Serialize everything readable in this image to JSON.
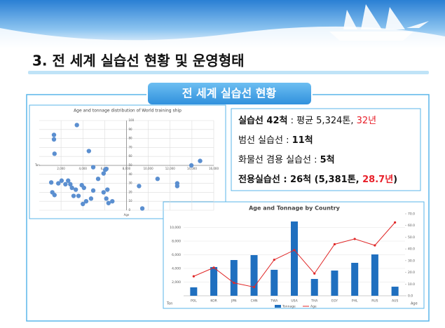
{
  "header": {
    "title": "3. 전 세계 실습선 현황 및 운영형태"
  },
  "section_title": "전 세계 실습선 현황",
  "summary": [
    [
      {
        "text": "실습선 42척",
        "bold": true
      },
      {
        "text": " : 평균 5,324톤, "
      },
      {
        "text": "32년",
        "color": "#e8202a"
      }
    ],
    [
      {
        "text": "범선 실습선 : "
      },
      {
        "text": "11척",
        "bold": true
      }
    ],
    [
      {
        "text": "화물선 겸용 실습선 : "
      },
      {
        "text": "5척",
        "bold": true
      }
    ],
    [
      {
        "text": "전용실습선 : 26척 (5,381톤, ",
        "bold": true
      },
      {
        "text": "28.7년",
        "color": "#e8202a",
        "bold": true
      },
      {
        "text": ")",
        "bold": true
      }
    ]
  ],
  "chart_data": [
    {
      "type": "scatter",
      "title": "Age and tonnage distribution of World training ship",
      "xlabel": "Age",
      "ylabel": "Ton",
      "color": "#5b8fd0",
      "grid": true,
      "axes_cross": {
        "x": 8000,
        "y": 50
      },
      "xlim": [
        0,
        16000
      ],
      "ylim": [
        0,
        100
      ],
      "xticks": [
        {
          "value": 2000,
          "label": "2,000"
        },
        {
          "value": 4000,
          "label": "4,000"
        },
        {
          "value": 6000,
          "label": "6,000"
        },
        {
          "value": 8000,
          "label": "8,000"
        },
        {
          "value": 10000,
          "label": "10,000"
        },
        {
          "value": 12000,
          "label": "12,000"
        },
        {
          "value": 14000,
          "label": "14,000"
        },
        {
          "value": 16000,
          "label": "16,000"
        }
      ],
      "yticks": [
        0,
        10,
        20,
        30,
        40,
        50,
        60,
        70,
        80,
        90,
        100
      ],
      "x": [
        1350,
        1350,
        1400,
        3450,
        4550,
        4950,
        6050,
        5900,
        6150,
        13950,
        14750,
        1100,
        1200,
        1400,
        1750,
        2050,
        2400,
        2650,
        2850,
        3000,
        3350,
        3150,
        3600,
        3900,
        4100,
        4000,
        4300,
        4750,
        4950,
        5400,
        5900,
        6150,
        6350,
        6700,
        6250,
        9150,
        9450,
        10850,
        12650,
        12650
      ],
      "values": [
        84,
        79,
        63,
        95,
        66,
        48,
        45,
        41,
        46,
        50,
        55,
        31,
        20,
        17,
        30,
        33,
        29,
        33,
        29,
        25,
        23,
        16,
        16,
        28,
        25,
        7,
        10,
        13,
        22,
        35,
        20,
        13,
        8,
        10,
        23,
        27,
        2,
        35,
        30,
        27
      ]
    },
    {
      "type": "bar",
      "title": "Age and Tonnage by Country",
      "ylabel": "Ton",
      "y2label": "Age",
      "grid": true,
      "categories": [
        "POL",
        "KOR",
        "JPN",
        "CHN",
        "TWA",
        "USA",
        "THA",
        "EGY",
        "PHL",
        "RUS",
        "AUS"
      ],
      "ylim": [
        0,
        12000
      ],
      "yticks": [
        {
          "value": 2000,
          "label": "2,000"
        },
        {
          "value": 4000,
          "label": "4,000"
        },
        {
          "value": 6000,
          "label": "6,000"
        },
        {
          "value": 8000,
          "label": "8,000"
        },
        {
          "value": 10000,
          "label": "10,000"
        }
      ],
      "y2lim": [
        0,
        70
      ],
      "y2ticks": [
        {
          "value": 0,
          "label": "0.0"
        },
        {
          "value": 10,
          "label": "10.0"
        },
        {
          "value": 20,
          "label": "20.0"
        },
        {
          "value": 30,
          "label": "30.0"
        },
        {
          "value": 40,
          "label": "40.0"
        },
        {
          "value": 50,
          "label": "50.0"
        },
        {
          "value": 60,
          "label": "60.0"
        },
        {
          "value": 70,
          "label": "70.0"
        }
      ],
      "series": [
        {
          "name": "Tonnage",
          "type": "bar",
          "color": "#1f6fbf",
          "values": [
            1230,
            4200,
            5230,
            5950,
            3800,
            10870,
            2460,
            3690,
            4820,
            6050,
            1330
          ]
        },
        {
          "name": "Age",
          "type": "line",
          "axis": "y2",
          "color": "#e02828",
          "values": [
            16.6,
            24,
            11,
            7.4,
            30.7,
            39,
            19,
            44,
            48.5,
            43,
            62.6
          ]
        }
      ]
    }
  ]
}
